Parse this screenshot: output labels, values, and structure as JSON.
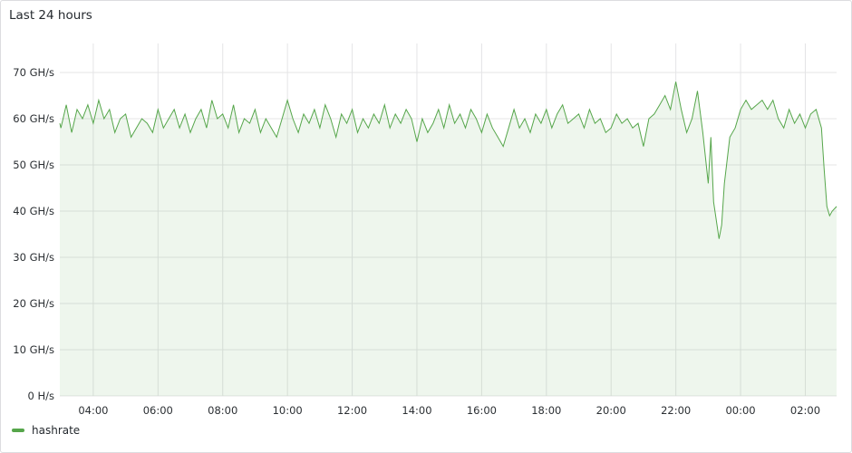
{
  "panel": {
    "title": "Last 24 hours"
  },
  "colors": {
    "series": "#56a64b",
    "grid": "#e4e4e6"
  },
  "chart_data": {
    "type": "area",
    "title": "Last 24 hours",
    "xlabel": "",
    "ylabel": "",
    "x_range": [
      "02:58",
      "02:58"
    ],
    "ylim": [
      0,
      70
    ],
    "y_unit": "GH/s",
    "y_ticks": [
      {
        "value": 0,
        "label": "0 H/s"
      },
      {
        "value": 10,
        "label": "10 GH/s"
      },
      {
        "value": 20,
        "label": "20 GH/s"
      },
      {
        "value": 30,
        "label": "30 GH/s"
      },
      {
        "value": 40,
        "label": "40 GH/s"
      },
      {
        "value": 50,
        "label": "50 GH/s"
      },
      {
        "value": 60,
        "label": "60 GH/s"
      },
      {
        "value": 70,
        "label": "70 GH/s"
      }
    ],
    "x_ticks": [
      "04:00",
      "06:00",
      "08:00",
      "10:00",
      "12:00",
      "14:00",
      "16:00",
      "18:00",
      "20:00",
      "22:00",
      "00:00",
      "02:00"
    ],
    "grid": true,
    "legend": "bottom-left",
    "series": [
      {
        "name": "hashrate",
        "points": [
          [
            "02:58",
            59
          ],
          [
            "03:00",
            58
          ],
          [
            "03:10",
            63
          ],
          [
            "03:20",
            57
          ],
          [
            "03:30",
            62
          ],
          [
            "03:40",
            60
          ],
          [
            "03:50",
            63
          ],
          [
            "04:00",
            59
          ],
          [
            "04:10",
            64
          ],
          [
            "04:20",
            60
          ],
          [
            "04:30",
            62
          ],
          [
            "04:40",
            57
          ],
          [
            "04:50",
            60
          ],
          [
            "05:00",
            61
          ],
          [
            "05:10",
            56
          ],
          [
            "05:20",
            58
          ],
          [
            "05:30",
            60
          ],
          [
            "05:40",
            59
          ],
          [
            "05:50",
            57
          ],
          [
            "06:00",
            62
          ],
          [
            "06:10",
            58
          ],
          [
            "06:20",
            60
          ],
          [
            "06:30",
            62
          ],
          [
            "06:40",
            58
          ],
          [
            "06:50",
            61
          ],
          [
            "07:00",
            57
          ],
          [
            "07:10",
            60
          ],
          [
            "07:20",
            62
          ],
          [
            "07:30",
            58
          ],
          [
            "07:40",
            64
          ],
          [
            "07:50",
            60
          ],
          [
            "08:00",
            61
          ],
          [
            "08:10",
            58
          ],
          [
            "08:20",
            63
          ],
          [
            "08:30",
            57
          ],
          [
            "08:40",
            60
          ],
          [
            "08:50",
            59
          ],
          [
            "09:00",
            62
          ],
          [
            "09:10",
            57
          ],
          [
            "09:20",
            60
          ],
          [
            "09:30",
            58
          ],
          [
            "09:40",
            56
          ],
          [
            "09:50",
            60
          ],
          [
            "10:00",
            64
          ],
          [
            "10:10",
            60
          ],
          [
            "10:20",
            57
          ],
          [
            "10:30",
            61
          ],
          [
            "10:40",
            59
          ],
          [
            "10:50",
            62
          ],
          [
            "11:00",
            58
          ],
          [
            "11:10",
            63
          ],
          [
            "11:20",
            60
          ],
          [
            "11:30",
            56
          ],
          [
            "11:40",
            61
          ],
          [
            "11:50",
            59
          ],
          [
            "12:00",
            62
          ],
          [
            "12:10",
            57
          ],
          [
            "12:20",
            60
          ],
          [
            "12:30",
            58
          ],
          [
            "12:40",
            61
          ],
          [
            "12:50",
            59
          ],
          [
            "13:00",
            63
          ],
          [
            "13:10",
            58
          ],
          [
            "13:20",
            61
          ],
          [
            "13:30",
            59
          ],
          [
            "13:40",
            62
          ],
          [
            "13:50",
            60
          ],
          [
            "14:00",
            55
          ],
          [
            "14:10",
            60
          ],
          [
            "14:20",
            57
          ],
          [
            "14:30",
            59
          ],
          [
            "14:40",
            62
          ],
          [
            "14:50",
            58
          ],
          [
            "15:00",
            63
          ],
          [
            "15:10",
            59
          ],
          [
            "15:20",
            61
          ],
          [
            "15:30",
            58
          ],
          [
            "15:40",
            62
          ],
          [
            "15:50",
            60
          ],
          [
            "16:00",
            57
          ],
          [
            "16:10",
            61
          ],
          [
            "16:20",
            58
          ],
          [
            "16:30",
            56
          ],
          [
            "16:40",
            54
          ],
          [
            "16:50",
            58
          ],
          [
            "17:00",
            62
          ],
          [
            "17:10",
            58
          ],
          [
            "17:20",
            60
          ],
          [
            "17:30",
            57
          ],
          [
            "17:40",
            61
          ],
          [
            "17:50",
            59
          ],
          [
            "18:00",
            62
          ],
          [
            "18:10",
            58
          ],
          [
            "18:20",
            61
          ],
          [
            "18:30",
            63
          ],
          [
            "18:40",
            59
          ],
          [
            "18:50",
            60
          ],
          [
            "19:00",
            61
          ],
          [
            "19:10",
            58
          ],
          [
            "19:20",
            62
          ],
          [
            "19:30",
            59
          ],
          [
            "19:40",
            60
          ],
          [
            "19:50",
            57
          ],
          [
            "20:00",
            58
          ],
          [
            "20:10",
            61
          ],
          [
            "20:20",
            59
          ],
          [
            "20:30",
            60
          ],
          [
            "20:40",
            58
          ],
          [
            "20:50",
            59
          ],
          [
            "21:00",
            54
          ],
          [
            "21:10",
            60
          ],
          [
            "21:20",
            61
          ],
          [
            "21:30",
            63
          ],
          [
            "21:40",
            65
          ],
          [
            "21:50",
            62
          ],
          [
            "22:00",
            68
          ],
          [
            "22:10",
            62
          ],
          [
            "22:20",
            57
          ],
          [
            "22:30",
            60
          ],
          [
            "22:40",
            66
          ],
          [
            "22:50",
            57
          ],
          [
            "23:00",
            46
          ],
          [
            "23:05",
            56
          ],
          [
            "23:10",
            42
          ],
          [
            "23:20",
            34
          ],
          [
            "23:25",
            37
          ],
          [
            "23:30",
            46
          ],
          [
            "23:40",
            56
          ],
          [
            "23:50",
            58
          ],
          [
            "00:00",
            62
          ],
          [
            "00:10",
            64
          ],
          [
            "00:20",
            62
          ],
          [
            "00:30",
            63
          ],
          [
            "00:40",
            64
          ],
          [
            "00:50",
            62
          ],
          [
            "01:00",
            64
          ],
          [
            "01:10",
            60
          ],
          [
            "01:20",
            58
          ],
          [
            "01:30",
            62
          ],
          [
            "01:40",
            59
          ],
          [
            "01:50",
            61
          ],
          [
            "02:00",
            58
          ],
          [
            "02:10",
            61
          ],
          [
            "02:20",
            62
          ],
          [
            "02:30",
            58
          ],
          [
            "02:35",
            49
          ],
          [
            "02:40",
            41
          ],
          [
            "02:45",
            39
          ],
          [
            "02:50",
            40
          ],
          [
            "02:58",
            41
          ]
        ]
      }
    ]
  },
  "legend": {
    "items": [
      {
        "label": "hashrate"
      }
    ]
  }
}
